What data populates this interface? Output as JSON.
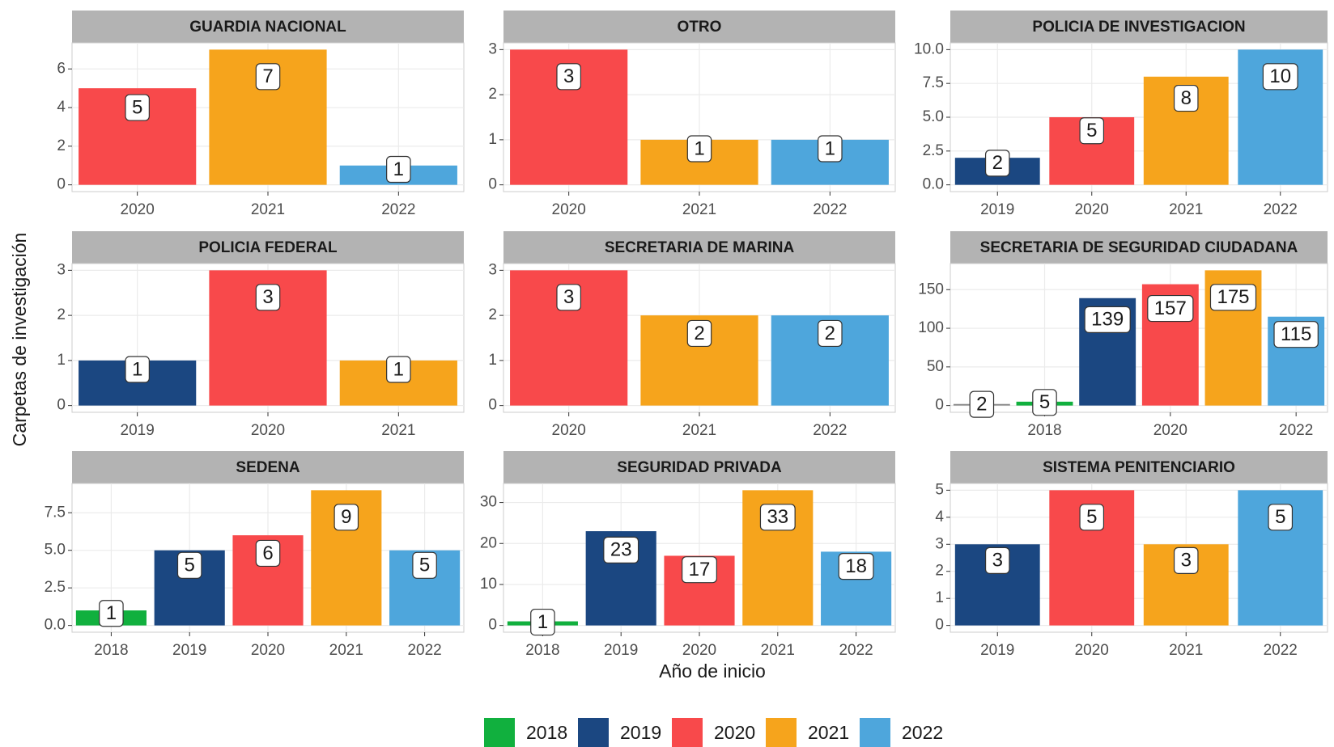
{
  "chart_data": {
    "type": "bar",
    "xlabel": "Año de inicio",
    "ylabel": "Carpetas de investigación",
    "legend": [
      {
        "name": "2018",
        "color": "#11b03e"
      },
      {
        "name": "2019",
        "color": "#1b4781"
      },
      {
        "name": "2020",
        "color": "#f8494b"
      },
      {
        "name": "2021",
        "color": "#f6a41c"
      },
      {
        "name": "2022",
        "color": "#4ea6dc"
      }
    ],
    "panels": [
      {
        "title": "GUARDIA NACIONAL",
        "categories": [
          "2020",
          "2021",
          "2022"
        ],
        "values": [
          5,
          7,
          1
        ],
        "colors": [
          "#f8494b",
          "#f6a41c",
          "#4ea6dc"
        ],
        "ylim": [
          -0.35,
          7.35
        ],
        "yticks": [
          0,
          2,
          4,
          6
        ]
      },
      {
        "title": "OTRO",
        "categories": [
          "2020",
          "2021",
          "2022"
        ],
        "values": [
          3,
          1,
          1
        ],
        "colors": [
          "#f8494b",
          "#f6a41c",
          "#4ea6dc"
        ],
        "ylim": [
          -0.15,
          3.15
        ],
        "yticks": [
          0,
          1,
          2,
          3
        ]
      },
      {
        "title": "POLICIA DE INVESTIGACION",
        "categories": [
          "2019",
          "2020",
          "2021",
          "2022"
        ],
        "values": [
          2,
          5,
          8,
          10
        ],
        "colors": [
          "#1b4781",
          "#f8494b",
          "#f6a41c",
          "#4ea6dc"
        ],
        "ylim": [
          -0.5,
          10.5
        ],
        "yticks": [
          {
            "value": 0,
            "label": "0.0"
          },
          {
            "value": 2.5,
            "label": "2.5"
          },
          {
            "value": 5,
            "label": "5.0"
          },
          {
            "value": 7.5,
            "label": "7.5"
          },
          {
            "value": 10,
            "label": "10.0"
          }
        ]
      },
      {
        "title": "POLICIA FEDERAL",
        "categories": [
          "2019",
          "2020",
          "2021"
        ],
        "values": [
          1,
          3,
          1
        ],
        "colors": [
          "#1b4781",
          "#f8494b",
          "#f6a41c"
        ],
        "ylim": [
          -0.15,
          3.15
        ],
        "yticks": [
          0,
          1,
          2,
          3
        ]
      },
      {
        "title": "SECRETARIA DE MARINA",
        "categories": [
          "2020",
          "2021",
          "2022"
        ],
        "values": [
          3,
          2,
          2
        ],
        "colors": [
          "#f8494b",
          "#f6a41c",
          "#4ea6dc"
        ],
        "ylim": [
          -0.15,
          3.15
        ],
        "yticks": [
          0,
          1,
          2,
          3
        ]
      },
      {
        "title": "SECRETARIA DE SEGURIDAD CIUDADANA",
        "categories": [
          null,
          "2018",
          null,
          "2020",
          null,
          "2022"
        ],
        "values": [
          2,
          5,
          139,
          157,
          175,
          115
        ],
        "colors": [
          "#888888",
          "#11b03e",
          "#1b4781",
          "#f8494b",
          "#f6a41c",
          "#4ea6dc"
        ],
        "ylim": [
          -8.75,
          183.75
        ],
        "yticks": [
          0,
          50,
          100,
          150
        ]
      },
      {
        "title": "SEDENA",
        "categories": [
          "2018",
          "2019",
          "2020",
          "2021",
          "2022"
        ],
        "values": [
          1,
          5,
          6,
          9,
          5
        ],
        "colors": [
          "#11b03e",
          "#1b4781",
          "#f8494b",
          "#f6a41c",
          "#4ea6dc"
        ],
        "ylim": [
          -0.45,
          9.45
        ],
        "yticks": [
          {
            "value": 0,
            "label": "0.0"
          },
          {
            "value": 2.5,
            "label": "2.5"
          },
          {
            "value": 5,
            "label": "5.0"
          },
          {
            "value": 7.5,
            "label": "7.5"
          }
        ]
      },
      {
        "title": "SEGURIDAD PRIVADA",
        "categories": [
          "2018",
          "2019",
          "2020",
          "2021",
          "2022"
        ],
        "values": [
          1,
          23,
          17,
          33,
          18
        ],
        "colors": [
          "#11b03e",
          "#1b4781",
          "#f8494b",
          "#f6a41c",
          "#4ea6dc"
        ],
        "ylim": [
          -1.65,
          34.65
        ],
        "yticks": [
          0,
          10,
          20,
          30
        ]
      },
      {
        "title": "SISTEMA PENITENCIARIO",
        "categories": [
          "2019",
          "2020",
          "2021",
          "2022"
        ],
        "values": [
          3,
          5,
          3,
          5
        ],
        "colors": [
          "#1b4781",
          "#f8494b",
          "#f6a41c",
          "#4ea6dc"
        ],
        "ylim": [
          -0.25,
          5.25
        ],
        "yticks": [
          0,
          1,
          2,
          3,
          4,
          5
        ]
      }
    ]
  }
}
